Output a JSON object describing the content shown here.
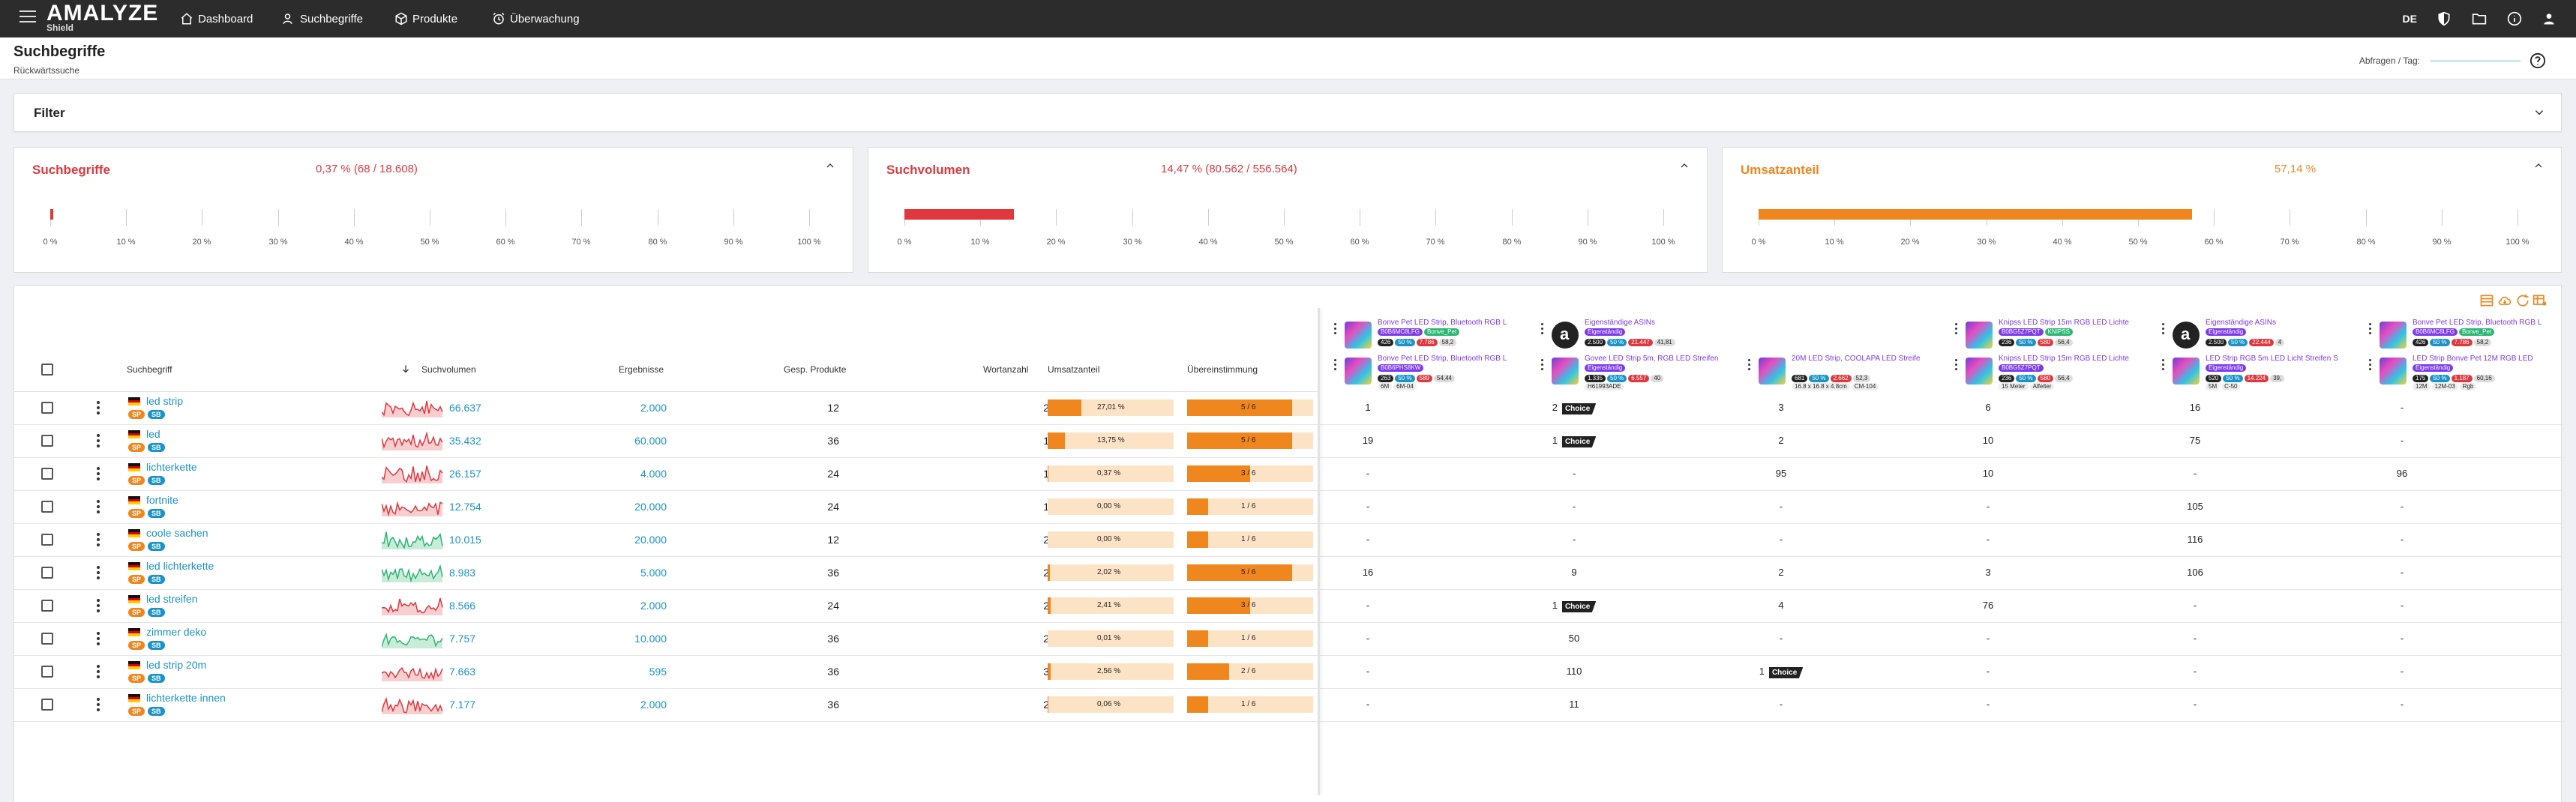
{
  "nav": {
    "logo": "AMALYZE",
    "logo_sub": "Shield",
    "items": [
      "Dashboard",
      "Suchbegriffe",
      "Produkte",
      "Überwachung"
    ],
    "lang": "DE"
  },
  "page": {
    "title": "Suchbegriffe",
    "subtitle": "Rückwärtssuche",
    "quota_label": "Abfragen / Tag:"
  },
  "filter": {
    "label": "Filter"
  },
  "cards": [
    {
      "title": "Suchbegriffe",
      "value": "0,37 % (68 / 18.608)",
      "color": "#e0383e",
      "fraction": 0.0037
    },
    {
      "title": "Suchvolumen",
      "value": "14,47 % (80.562 / 556.564)",
      "color": "#e0383e",
      "fraction": 0.1447
    },
    {
      "title": "Umsatzanteil",
      "value": "57,14 %",
      "color": "#f0861e",
      "fraction": 0.5714
    }
  ],
  "axis_ticks": [
    "0 %",
    "10 %",
    "20 %",
    "30 %",
    "40 %",
    "50 %",
    "60 %",
    "70 %",
    "80 %",
    "90 %",
    "100 %"
  ],
  "table": {
    "headers": {
      "keyword": "Suchbegriff",
      "volume": "Suchvolumen",
      "results": "Ergebnisse",
      "products": "Gesp. Produkte",
      "words": "Wortanzahl",
      "share": "Umsatzanteil",
      "match": "Übereinstimmung"
    },
    "rows": [
      {
        "keyword": "led strip",
        "trend": "red",
        "volume": "66.637",
        "results": "2.000",
        "products": "12",
        "words": "2",
        "share": "27,01 %",
        "share_val": 0.2701,
        "match": "5 / 6",
        "match_val": 0.833,
        "cols": [
          "1",
          "2|Choice",
          "3",
          "6",
          "16",
          "-"
        ]
      },
      {
        "keyword": "led",
        "trend": "red",
        "volume": "35.432",
        "results": "60.000",
        "products": "36",
        "words": "1",
        "share": "13,75 %",
        "share_val": 0.1375,
        "match": "5 / 6",
        "match_val": 0.833,
        "cols": [
          "19",
          "1|Choice",
          "2",
          "10",
          "75",
          "-"
        ]
      },
      {
        "keyword": "lichterkette",
        "trend": "red",
        "volume": "26.157",
        "results": "4.000",
        "products": "24",
        "words": "1",
        "share": "0,37 %",
        "share_val": 0.0037,
        "match": "3 / 6",
        "match_val": 0.5,
        "cols": [
          "-",
          "-",
          "95",
          "10",
          "-",
          "96"
        ]
      },
      {
        "keyword": "fortnite",
        "trend": "red",
        "volume": "12.754",
        "results": "20.000",
        "products": "24",
        "words": "1",
        "share": "0,00 %",
        "share_val": 0.0,
        "match": "1 / 6",
        "match_val": 0.167,
        "cols": [
          "-",
          "-",
          "-",
          "-",
          "105",
          "-"
        ]
      },
      {
        "keyword": "coole sachen",
        "trend": "green",
        "volume": "10.015",
        "results": "20.000",
        "products": "12",
        "words": "2",
        "share": "0,00 %",
        "share_val": 0.0,
        "match": "1 / 6",
        "match_val": 0.167,
        "cols": [
          "-",
          "-",
          "-",
          "-",
          "116",
          "-"
        ]
      },
      {
        "keyword": "led lichterkette",
        "trend": "green",
        "volume": "8.983",
        "results": "5.000",
        "products": "36",
        "words": "2",
        "share": "2,02 %",
        "share_val": 0.0202,
        "match": "5 / 6",
        "match_val": 0.833,
        "cols": [
          "16",
          "9",
          "2",
          "3",
          "106",
          "-"
        ]
      },
      {
        "keyword": "led streifen",
        "trend": "red",
        "volume": "8.566",
        "results": "2.000",
        "products": "24",
        "words": "2",
        "share": "2,41 %",
        "share_val": 0.0241,
        "match": "3 / 6",
        "match_val": 0.5,
        "cols": [
          "-",
          "1|Choice",
          "4",
          "76",
          "-",
          "-"
        ]
      },
      {
        "keyword": "zimmer deko",
        "trend": "green",
        "volume": "7.757",
        "results": "10.000",
        "products": "36",
        "words": "2",
        "share": "0,01 %",
        "share_val": 0.0001,
        "match": "1 / 6",
        "match_val": 0.167,
        "cols": [
          "-",
          "50",
          "-",
          "-",
          "-",
          "-"
        ]
      },
      {
        "keyword": "led strip 20m",
        "trend": "red",
        "volume": "7.663",
        "results": "595",
        "products": "36",
        "words": "3",
        "share": "2,56 %",
        "share_val": 0.0256,
        "match": "2 / 6",
        "match_val": 0.333,
        "cols": [
          "-",
          "110",
          "1|Choice",
          "-",
          "-",
          "-"
        ]
      },
      {
        "keyword": "lichterkette innen",
        "trend": "red",
        "volume": "7.177",
        "results": "2.000",
        "products": "36",
        "words": "2",
        "share": "0,06 %",
        "share_val": 0.0006,
        "match": "1 / 6",
        "match_val": 0.167,
        "cols": [
          "-",
          "11",
          "-",
          "-",
          "-",
          "-"
        ]
      }
    ]
  },
  "products_top": [
    {
      "title": "Bonve Pet LED Strip, Bluetooth RGB L",
      "tags": [
        "B0B6MC8LFG",
        "Bonve_Pet"
      ],
      "stats": [
        "426",
        "50 %",
        "7.786",
        "58,2"
      ],
      "img": "led"
    },
    {
      "title": "Eigenständige ASINs",
      "tags": [
        "Eigenständig"
      ],
      "stats": [
        "2.500",
        "50 %",
        "21.447",
        "41,81"
      ],
      "img": "amz"
    },
    {
      "title": "Knipss LED Strip 15m RGB LED Lichte",
      "tags": [
        "B0BG5Z7PQT",
        "KNIPSS"
      ],
      "stats": [
        "236",
        "50 %",
        "580",
        "56,4"
      ],
      "img": "led"
    },
    {
      "title": "Eigenständige ASINs",
      "tags": [
        "Eigenständig"
      ],
      "stats": [
        "2.500",
        "50 %",
        "22.444",
        "4"
      ],
      "img": "amz"
    },
    {
      "title": "Bonve Pet LED Strip, Bluetooth RGB L",
      "tags": [
        "B0B6MC8LFG",
        "Bonve_Pet"
      ],
      "stats": [
        "426",
        "50 %",
        "7.786",
        "58,2"
      ],
      "img": "led"
    }
  ],
  "products_bottom": [
    {
      "title": "Bonve Pet LED Strip, Bluetooth RGB L",
      "tags": [
        "B0B6PHS8KW"
      ],
      "stats": [
        "263",
        "50 %",
        "589",
        "54,44"
      ],
      "sub": [
        "6M",
        "6M-04"
      ],
      "img": "led"
    },
    {
      "title": "Govee LED Strip 5m, RGB LED Streifen",
      "tags": [
        "Eigenständig"
      ],
      "stats": [
        "1.335",
        "50 %",
        "6.557",
        "40"
      ],
      "sub": [
        "H61993ADE"
      ],
      "img": "led"
    },
    {
      "title": "20M LED Strip, COOLAPA LED Streife",
      "tags": [],
      "stats": [
        "681",
        "50 %",
        "2.662",
        "52,3"
      ],
      "sub": [
        "16.8 x 16.8 x 4.8cm",
        "CM-104"
      ],
      "img": "led"
    },
    {
      "title": "Knipss LED Strip 15m RGB LED Lichte",
      "tags": [
        "B0BG5Z7PQT"
      ],
      "stats": [
        "236",
        "50 %",
        "580",
        "56,4"
      ],
      "sub": [
        "15 Meter",
        "Alfelter"
      ],
      "img": "led"
    },
    {
      "title": "LED Strip RGB 5m LED Licht Streifen S",
      "tags": [
        "Eigenständig"
      ],
      "stats": [
        "520",
        "50 %",
        "14.224",
        "39,"
      ],
      "sub": [
        "5M",
        "C-50"
      ],
      "img": "led"
    },
    {
      "title": "LED Strip Bonve Pet 12M RGB LED",
      "tags": [
        "Eigenständig"
      ],
      "stats": [
        "175",
        "50 %",
        "1.187",
        "60,16"
      ],
      "sub": [
        "12M",
        "12M-03",
        "Rgb"
      ],
      "img": "led"
    }
  ],
  "colors": {
    "accent": "#f0861e",
    "link": "#1a93c9",
    "red": "#e0383e",
    "green": "#2bb673",
    "badge_sp": "#f0861e",
    "badge_sb": "#1a93c9"
  }
}
